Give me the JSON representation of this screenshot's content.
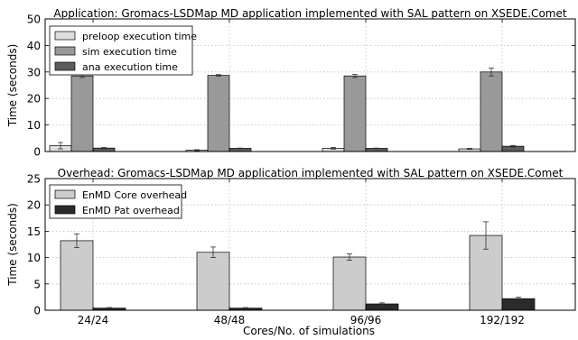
{
  "figure": {
    "xlabel": "Cores/No. of simulations"
  },
  "chart_data": [
    {
      "type": "bar",
      "title": "Application: Gromacs-LSDMap MD application implemented with SAL pattern on XSEDE.Comet",
      "xlabel": "",
      "ylabel": "Time (seconds)",
      "ylim": [
        0,
        50
      ],
      "yticks": [
        0,
        10,
        20,
        30,
        40,
        50
      ],
      "categories": [
        "24/24",
        "48/48",
        "96/96",
        "192/192"
      ],
      "show_category_labels": false,
      "grid": true,
      "legend_position": "top-left",
      "series": [
        {
          "name": "preloop execution time",
          "color": "#dedede",
          "values": [
            2.2,
            0.5,
            1.2,
            1.0
          ],
          "errors": [
            1.2,
            0.2,
            0.3,
            0.2
          ]
        },
        {
          "name": "sim execution time",
          "color": "#999999",
          "values": [
            28.5,
            28.7,
            28.5,
            30.0
          ],
          "errors": [
            0.6,
            0.3,
            0.6,
            1.5
          ]
        },
        {
          "name": "ana execution time",
          "color": "#5c5c5c",
          "values": [
            1.3,
            1.2,
            1.2,
            2.0
          ],
          "errors": [
            0.2,
            0.1,
            0.1,
            0.3
          ]
        }
      ]
    },
    {
      "type": "bar",
      "title": "Overhead: Gromacs-LSDMap MD application implemented with SAL pattern on XSEDE.Comet",
      "xlabel": "Cores/No. of simulations",
      "ylabel": "Time (seconds)",
      "ylim": [
        0,
        25
      ],
      "yticks": [
        0,
        5,
        10,
        15,
        20,
        25
      ],
      "categories": [
        "24/24",
        "48/48",
        "96/96",
        "192/192"
      ],
      "show_category_labels": true,
      "grid": true,
      "legend_position": "top-left",
      "series": [
        {
          "name": "EnMD Core overhead",
          "color": "#cccccc",
          "values": [
            13.2,
            11.0,
            10.1,
            14.2
          ],
          "errors": [
            1.3,
            1.0,
            0.6,
            2.6
          ]
        },
        {
          "name": "EnMD Pat overhead",
          "color": "#2b2b2b",
          "values": [
            0.4,
            0.4,
            1.2,
            2.2
          ],
          "errors": [
            0.1,
            0.1,
            0.2,
            0.3
          ]
        }
      ]
    }
  ]
}
